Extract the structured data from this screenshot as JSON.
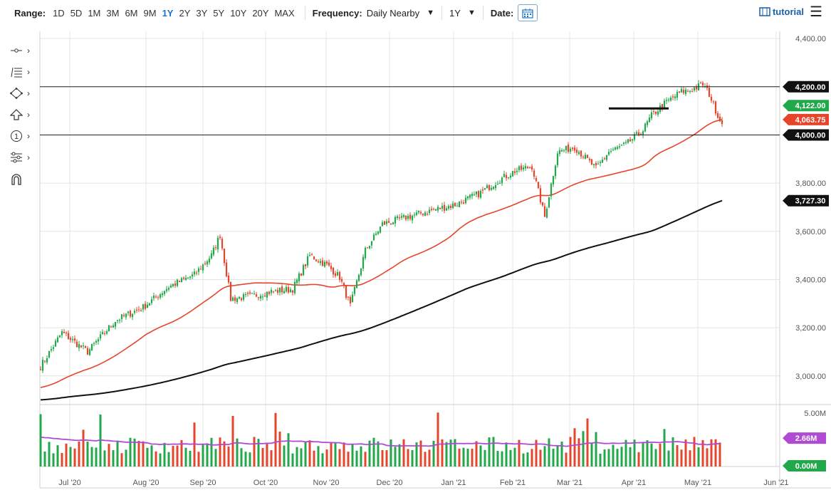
{
  "toolbar": {
    "range_label": "Range:",
    "ranges": [
      "1D",
      "5D",
      "1M",
      "3M",
      "6M",
      "9M",
      "1Y",
      "2Y",
      "3Y",
      "5Y",
      "10Y",
      "20Y",
      "MAX"
    ],
    "active_range": "1Y",
    "frequency_label": "Frequency:",
    "frequency_value": "Daily Nearby",
    "period_value": "1Y",
    "date_label": "Date:",
    "tutorial_label": "tutorial"
  },
  "left_tools": [
    {
      "icon": "line-tool-icon"
    },
    {
      "icon": "fibonacci-tool-icon"
    },
    {
      "icon": "shapes-tool-icon"
    },
    {
      "icon": "arrow-tool-icon"
    },
    {
      "icon": "annotation-tool-icon"
    },
    {
      "icon": "settings-tool-icon"
    },
    {
      "icon": "magnet-icon"
    }
  ],
  "chart_data": {
    "type": "candlestick",
    "x_tick_labels": [
      "Jul '20",
      "Aug '20",
      "Sep '20",
      "Oct '20",
      "Nov '20",
      "Dec '20",
      "Jan '21",
      "Feb '21",
      "Mar '21",
      "Apr '21",
      "May '21",
      "Jun '21"
    ],
    "y_tick_labels": [
      "4,400.00",
      "4,200.00",
      "4,000.00",
      "3,800.00",
      "3,600.00",
      "3,400.00",
      "3,200.00",
      "3,000.00"
    ],
    "ylim": [
      2890,
      4430
    ],
    "grid": true,
    "approx_close_path": [
      [
        0,
        3040
      ],
      [
        10,
        3180
      ],
      [
        22,
        3100
      ],
      [
        35,
        3230
      ],
      [
        48,
        3285
      ],
      [
        60,
        3370
      ],
      [
        72,
        3420
      ],
      [
        80,
        3500
      ],
      [
        84,
        3585
      ],
      [
        89,
        3320
      ],
      [
        98,
        3330
      ],
      [
        108,
        3350
      ],
      [
        118,
        3360
      ],
      [
        126,
        3500
      ],
      [
        134,
        3460
      ],
      [
        140,
        3410
      ],
      [
        145,
        3290
      ],
      [
        152,
        3520
      ],
      [
        160,
        3630
      ],
      [
        172,
        3660
      ],
      [
        184,
        3690
      ],
      [
        194,
        3710
      ],
      [
        206,
        3760
      ],
      [
        214,
        3810
      ],
      [
        222,
        3850
      ],
      [
        230,
        3870
      ],
      [
        236,
        3660
      ],
      [
        242,
        3930
      ],
      [
        250,
        3950
      ],
      [
        260,
        3860
      ],
      [
        266,
        3930
      ],
      [
        274,
        3960
      ],
      [
        282,
        4020
      ],
      [
        286,
        4080
      ],
      [
        292,
        4130
      ],
      [
        300,
        4180
      ],
      [
        304,
        4185
      ],
      [
        310,
        4210
      ],
      [
        313,
        4170
      ],
      [
        318,
        4060
      ]
    ],
    "sma_50_last": 4063.75,
    "sma_200_last": 3727.3,
    "horizontal_lines": [
      4200,
      4000
    ],
    "price_badges": [
      {
        "label": "4,200.00",
        "value": 4200,
        "color": "#111111"
      },
      {
        "label": "4,122.00",
        "value": 4122,
        "color": "#21a84a"
      },
      {
        "label": "4,063.75",
        "value": 4063.75,
        "color": "#e5452b"
      },
      {
        "label": "4,000.00",
        "value": 4000,
        "color": "#111111"
      },
      {
        "label": "3,727.30",
        "value": 3727.3,
        "color": "#111111"
      }
    ],
    "volume": {
      "y_tick_label": "5.00M",
      "ylim_millions": [
        0,
        5.0
      ],
      "avg_badge": {
        "label": "2.66M",
        "value": 2.66,
        "color": "#b04ad4"
      },
      "zero_badge": {
        "label": "0.00M",
        "value": 0,
        "color": "#21a84a"
      }
    },
    "colors": {
      "up": "#21a84a",
      "down": "#e5452b",
      "sma_50": "#e5452b",
      "sma_200": "#111111",
      "volume_avg": "#b04ad4"
    }
  }
}
